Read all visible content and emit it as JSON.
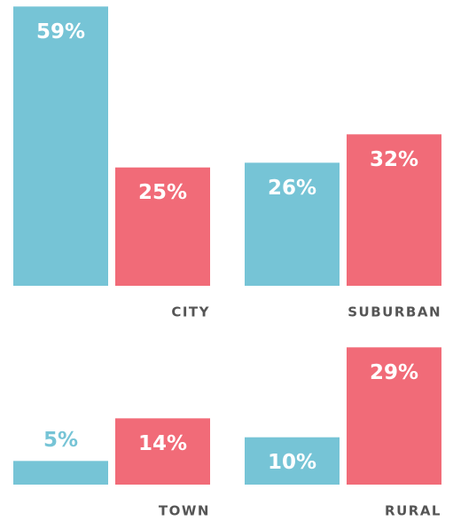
{
  "chart_data": {
    "type": "bar",
    "categories": [
      "CITY",
      "SUBURBAN",
      "TOWN",
      "RURAL"
    ],
    "series": [
      {
        "color": "#76c4d6",
        "values": [
          59,
          26,
          5,
          10
        ],
        "value_labels": [
          "59%",
          "26%",
          "5%",
          "10%"
        ]
      },
      {
        "color": "#f16b78",
        "values": [
          25,
          32,
          14,
          29
        ],
        "value_labels": [
          "25%",
          "32%",
          "14%",
          "29%"
        ]
      }
    ],
    "ylim": [
      0,
      60
    ]
  }
}
